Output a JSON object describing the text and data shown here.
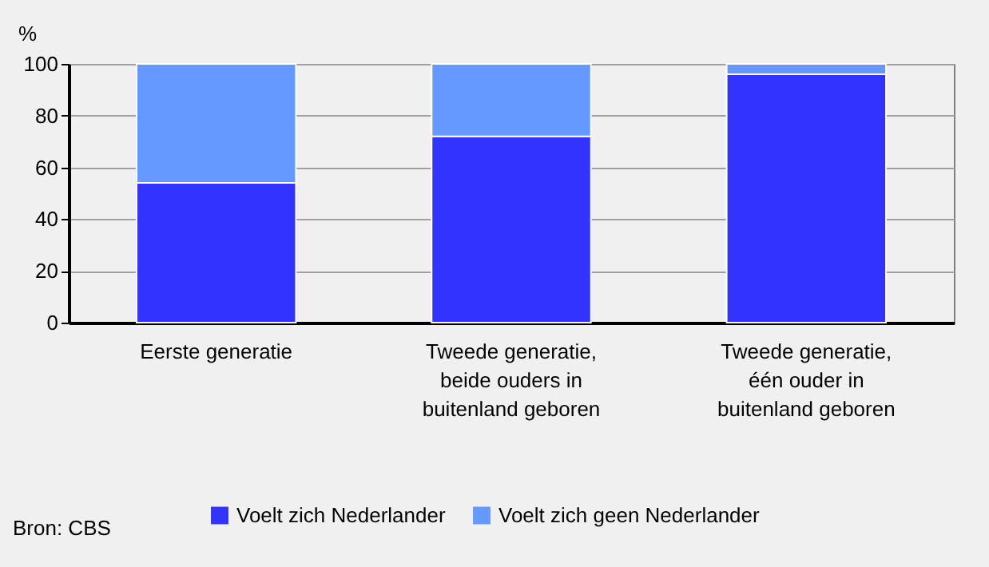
{
  "chart_data": {
    "type": "bar",
    "stacked": true,
    "ylabel": "%",
    "categories": [
      "Eerste generatie",
      "Tweede generatie, beide ouders in buitenland geboren",
      "Tweede generatie, één ouder in buitenland geboren"
    ],
    "series": [
      {
        "name": "Voelt zich Nederlander",
        "color": "#3333ff",
        "values": [
          54,
          72,
          96
        ]
      },
      {
        "name": "Voelt zich geen Nederlander",
        "color": "#6699ff",
        "values": [
          46,
          28,
          4
        ]
      }
    ],
    "ylim": [
      0,
      100
    ],
    "yticks": [
      0,
      20,
      40,
      60,
      80,
      100
    ],
    "grid": "y",
    "legend": "bottom",
    "annotations": [
      "Bron: CBS"
    ]
  }
}
